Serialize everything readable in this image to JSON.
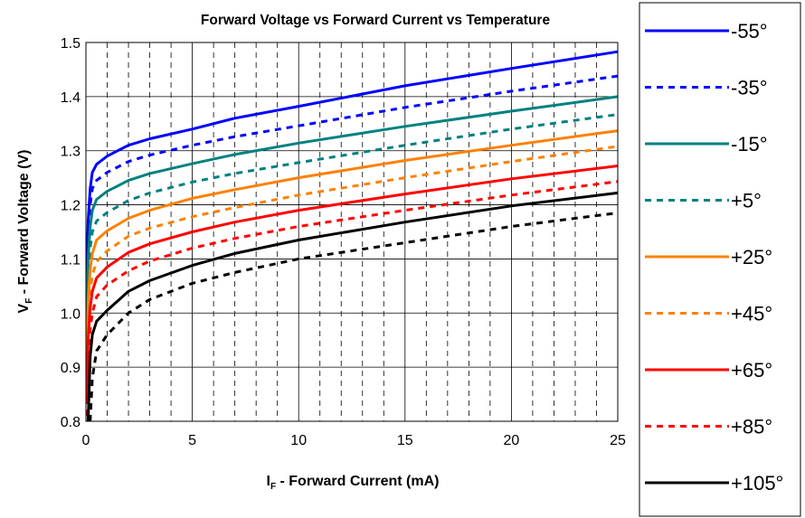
{
  "chart_data": {
    "type": "line",
    "title": "Forward Voltage vs Forward Current vs Temperature",
    "xlabel": {
      "main": "I",
      "sub": "F",
      "rest": " - Forward Current (mA)"
    },
    "ylabel": {
      "main": "V",
      "sub": "F",
      "rest": " - Forward Voltage (V)"
    },
    "xlim": [
      0,
      25
    ],
    "ylim": [
      0.8,
      1.5
    ],
    "x_ticks": [
      "0",
      "5",
      "10",
      "15",
      "20",
      "25"
    ],
    "y_ticks": [
      "0.8",
      "0.9",
      "1.0",
      "1.1",
      "1.2",
      "1.3",
      "1.4",
      "1.5"
    ],
    "grid": "major solid, minor dashed vertical every 1 mA",
    "legend_position": "right",
    "series": [
      {
        "name": "-55°",
        "color": "#0000ff",
        "dash": false,
        "points": [
          [
            0.05,
            1.08
          ],
          [
            0.1,
            1.17
          ],
          [
            0.2,
            1.23
          ],
          [
            0.3,
            1.26
          ],
          [
            0.5,
            1.275
          ],
          [
            1,
            1.29
          ],
          [
            2,
            1.31
          ],
          [
            3,
            1.322
          ],
          [
            5,
            1.34
          ],
          [
            7,
            1.36
          ],
          [
            10,
            1.382
          ],
          [
            15,
            1.42
          ],
          [
            20,
            1.452
          ],
          [
            25,
            1.483
          ]
        ]
      },
      {
        "name": "-35°",
        "color": "#0000ff",
        "dash": true,
        "points": [
          [
            0.05,
            1.05
          ],
          [
            0.1,
            1.14
          ],
          [
            0.2,
            1.2
          ],
          [
            0.3,
            1.23
          ],
          [
            0.5,
            1.245
          ],
          [
            1,
            1.26
          ],
          [
            2,
            1.28
          ],
          [
            3,
            1.292
          ],
          [
            5,
            1.31
          ],
          [
            7,
            1.326
          ],
          [
            10,
            1.346
          ],
          [
            15,
            1.38
          ],
          [
            20,
            1.41
          ],
          [
            25,
            1.438
          ]
        ]
      },
      {
        "name": "-15°",
        "color": "#008080",
        "dash": false,
        "points": [
          [
            0.05,
            1.0
          ],
          [
            0.1,
            1.1
          ],
          [
            0.2,
            1.16
          ],
          [
            0.3,
            1.19
          ],
          [
            0.5,
            1.21
          ],
          [
            1,
            1.225
          ],
          [
            2,
            1.245
          ],
          [
            3,
            1.258
          ],
          [
            5,
            1.276
          ],
          [
            7,
            1.293
          ],
          [
            10,
            1.314
          ],
          [
            15,
            1.345
          ],
          [
            20,
            1.373
          ],
          [
            25,
            1.4
          ]
        ]
      },
      {
        "name": "+5°",
        "color": "#008080",
        "dash": true,
        "points": [
          [
            0.05,
            0.97
          ],
          [
            0.1,
            1.06
          ],
          [
            0.2,
            1.12
          ],
          [
            0.3,
            1.15
          ],
          [
            0.5,
            1.17
          ],
          [
            1,
            1.186
          ],
          [
            2,
            1.208
          ],
          [
            3,
            1.222
          ],
          [
            5,
            1.242
          ],
          [
            7,
            1.258
          ],
          [
            10,
            1.278
          ],
          [
            15,
            1.31
          ],
          [
            20,
            1.34
          ],
          [
            25,
            1.367
          ]
        ]
      },
      {
        "name": "+25°",
        "color": "#ff8000",
        "dash": false,
        "points": [
          [
            0.05,
            0.92
          ],
          [
            0.1,
            1.02
          ],
          [
            0.2,
            1.08
          ],
          [
            0.3,
            1.11
          ],
          [
            0.5,
            1.135
          ],
          [
            1,
            1.152
          ],
          [
            2,
            1.175
          ],
          [
            3,
            1.19
          ],
          [
            5,
            1.212
          ],
          [
            7,
            1.228
          ],
          [
            10,
            1.25
          ],
          [
            15,
            1.282
          ],
          [
            20,
            1.31
          ],
          [
            25,
            1.337
          ]
        ]
      },
      {
        "name": "+45°",
        "color": "#ff8000",
        "dash": true,
        "points": [
          [
            0.05,
            0.88
          ],
          [
            0.1,
            0.98
          ],
          [
            0.2,
            1.04
          ],
          [
            0.3,
            1.07
          ],
          [
            0.5,
            1.095
          ],
          [
            1,
            1.115
          ],
          [
            2,
            1.142
          ],
          [
            3,
            1.157
          ],
          [
            5,
            1.178
          ],
          [
            7,
            1.195
          ],
          [
            10,
            1.218
          ],
          [
            15,
            1.25
          ],
          [
            20,
            1.28
          ],
          [
            25,
            1.308
          ]
        ]
      },
      {
        "name": "+65°",
        "color": "#ff0000",
        "dash": false,
        "points": [
          [
            0.05,
            0.84
          ],
          [
            0.1,
            0.95
          ],
          [
            0.2,
            1.01
          ],
          [
            0.3,
            1.04
          ],
          [
            0.5,
            1.065
          ],
          [
            1,
            1.085
          ],
          [
            2,
            1.112
          ],
          [
            3,
            1.128
          ],
          [
            5,
            1.15
          ],
          [
            7,
            1.168
          ],
          [
            10,
            1.19
          ],
          [
            15,
            1.22
          ],
          [
            20,
            1.248
          ],
          [
            25,
            1.272
          ]
        ]
      },
      {
        "name": "+85°",
        "color": "#ff0000",
        "dash": true,
        "points": [
          [
            0.05,
            0.81
          ],
          [
            0.1,
            0.91
          ],
          [
            0.2,
            0.97
          ],
          [
            0.3,
            1.0
          ],
          [
            0.5,
            1.03
          ],
          [
            1,
            1.052
          ],
          [
            2,
            1.078
          ],
          [
            3,
            1.096
          ],
          [
            5,
            1.12
          ],
          [
            7,
            1.138
          ],
          [
            10,
            1.16
          ],
          [
            15,
            1.19
          ],
          [
            20,
            1.218
          ],
          [
            25,
            1.243
          ]
        ]
      },
      {
        "name": "+105°",
        "color": "#000000",
        "dash": false,
        "points": [
          [
            0.1,
            0.8
          ],
          [
            0.2,
            0.92
          ],
          [
            0.3,
            0.96
          ],
          [
            0.5,
            0.985
          ],
          [
            1,
            1.005
          ],
          [
            2,
            1.04
          ],
          [
            3,
            1.06
          ],
          [
            5,
            1.088
          ],
          [
            7,
            1.11
          ],
          [
            10,
            1.135
          ],
          [
            15,
            1.168
          ],
          [
            20,
            1.198
          ],
          [
            25,
            1.222
          ]
        ]
      },
      {
        "name": "+105°_dashed",
        "color": "#000000",
        "dash": true,
        "hidden_legend": true,
        "points": [
          [
            0.2,
            0.8
          ],
          [
            0.3,
            0.88
          ],
          [
            0.5,
            0.93
          ],
          [
            1,
            0.96
          ],
          [
            2,
            1.0
          ],
          [
            3,
            1.025
          ],
          [
            5,
            1.055
          ],
          [
            7,
            1.075
          ],
          [
            10,
            1.1
          ],
          [
            15,
            1.13
          ],
          [
            20,
            1.16
          ],
          [
            25,
            1.185
          ]
        ]
      }
    ]
  }
}
